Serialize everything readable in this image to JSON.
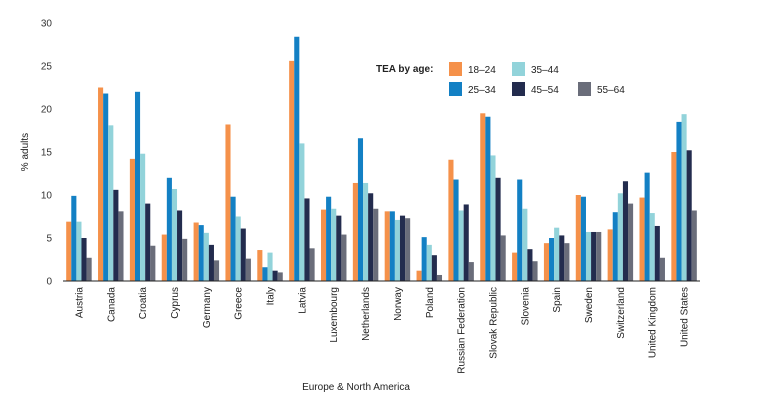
{
  "chart_data": {
    "type": "bar",
    "title": "",
    "xlabel": "Europe & North America",
    "ylabel": "% adults",
    "ylim": [
      0,
      30
    ],
    "yticks": [
      0,
      5,
      10,
      15,
      20,
      25,
      30
    ],
    "grid": false,
    "legend": {
      "title": "TEA by age:",
      "position": "top-right"
    },
    "categories": [
      "Austria",
      "Canada",
      "Croatia",
      "Cyprus",
      "Germany",
      "Greece",
      "Italy",
      "Latvia",
      "Luxembourg",
      "Netherlands",
      "Norway",
      "Poland",
      "Russian Federation",
      "Slovak Republic",
      "Slovenia",
      "Spain",
      "Sweden",
      "Switzerland",
      "United Kingdom",
      "United States"
    ],
    "series": [
      {
        "name": "18–24",
        "color": "#f5914a",
        "values": [
          6.9,
          22.5,
          14.2,
          5.4,
          6.8,
          18.2,
          3.6,
          25.6,
          8.3,
          11.4,
          8.1,
          1.2,
          14.1,
          19.5,
          3.3,
          4.4,
          10.0,
          6.0,
          9.7,
          15.0
        ]
      },
      {
        "name": "25–34",
        "color": "#1380c4",
        "values": [
          9.9,
          21.8,
          22.0,
          12.0,
          6.5,
          9.8,
          1.6,
          28.4,
          9.8,
          16.6,
          8.1,
          5.1,
          11.8,
          19.1,
          11.8,
          5.0,
          9.8,
          8.0,
          12.6,
          18.5
        ]
      },
      {
        "name": "35–44",
        "color": "#92d3da",
        "values": [
          6.9,
          18.1,
          14.8,
          10.7,
          5.6,
          7.5,
          3.3,
          16.0,
          8.4,
          11.4,
          7.1,
          4.2,
          8.2,
          14.6,
          8.4,
          6.2,
          5.7,
          10.2,
          7.9,
          19.4
        ]
      },
      {
        "name": "45–54",
        "color": "#232c4e",
        "values": [
          5.0,
          10.6,
          9.0,
          8.2,
          4.2,
          6.1,
          1.2,
          9.6,
          7.6,
          10.2,
          7.6,
          3.0,
          8.9,
          12.0,
          3.7,
          5.3,
          5.7,
          11.6,
          6.4,
          15.2
        ]
      },
      {
        "name": "55–64",
        "color": "#6a6d7a",
        "values": [
          2.7,
          8.1,
          4.1,
          4.9,
          2.4,
          2.6,
          1.0,
          3.8,
          5.4,
          8.4,
          7.3,
          0.7,
          2.2,
          5.3,
          2.3,
          4.4,
          5.7,
          9.0,
          2.7,
          8.2
        ]
      }
    ]
  }
}
